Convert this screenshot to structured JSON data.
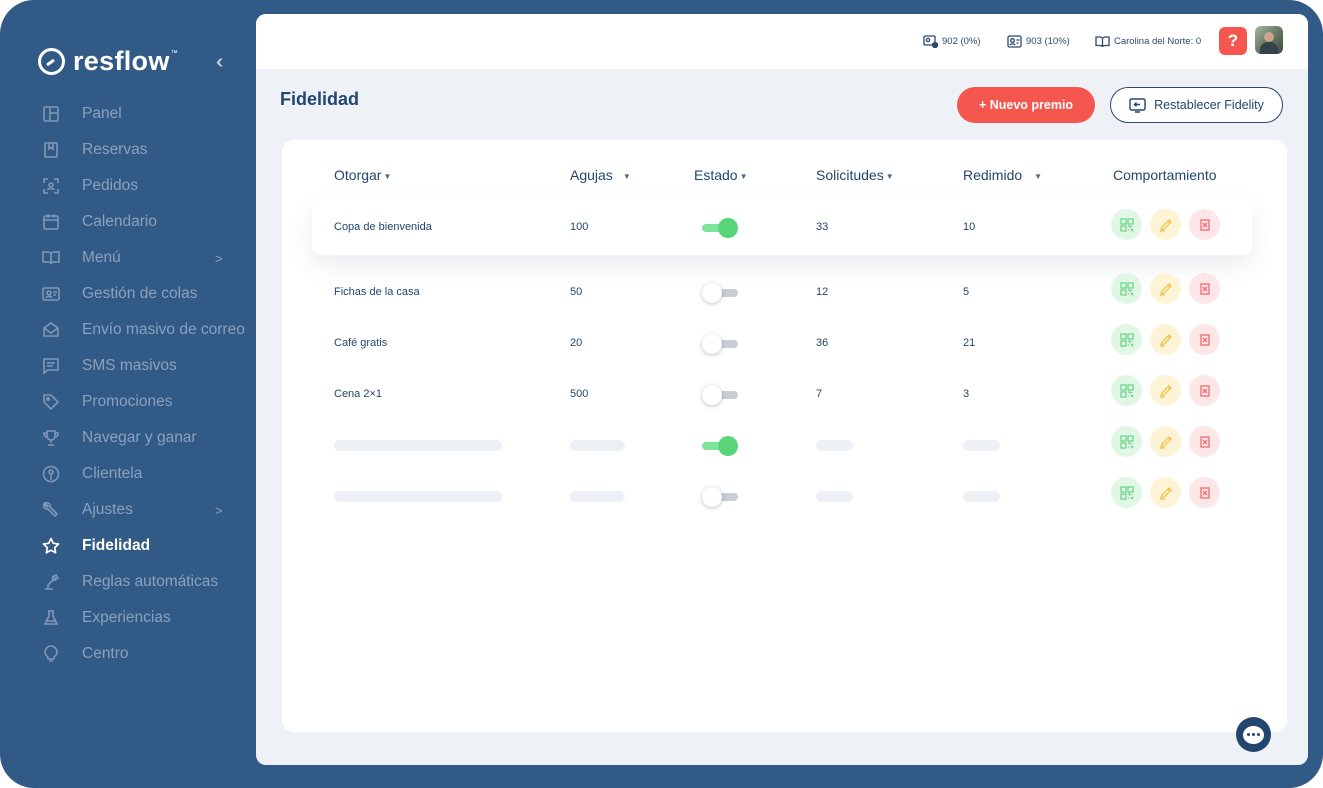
{
  "brand": {
    "name": "resflow",
    "tm": "™"
  },
  "sidebar": {
    "collapse_icon": "double-chevron-left-icon",
    "items": [
      {
        "label": "Panel",
        "icon": "layout-icon",
        "arrow": ""
      },
      {
        "label": "Reservas",
        "icon": "bookmark-icon",
        "arrow": ""
      },
      {
        "label": "Pedidos",
        "icon": "scan-icon",
        "arrow": ""
      },
      {
        "label": "Calendario",
        "icon": "calendar-icon",
        "arrow": ""
      },
      {
        "label": "Menú",
        "icon": "book-open-icon",
        "arrow": ">"
      },
      {
        "label": "Gestión de colas",
        "icon": "id-card-icon",
        "arrow": ""
      },
      {
        "label": "Envío masivo de correo",
        "icon": "mail-icon",
        "arrow": ""
      },
      {
        "label": "SMS masivos",
        "icon": "message-icon",
        "arrow": ""
      },
      {
        "label": "Promociones",
        "icon": "tag-icon",
        "arrow": ""
      },
      {
        "label": "Navegar y ganar",
        "icon": "trophy-icon",
        "arrow": ""
      },
      {
        "label": "Clientela",
        "icon": "user-circle-icon",
        "arrow": ""
      },
      {
        "label": "Ajustes",
        "icon": "wrench-icon",
        "arrow": ">"
      },
      {
        "label": "Fidelidad",
        "icon": "star-icon",
        "arrow": "",
        "active": true
      },
      {
        "label": "Reglas automáticas",
        "icon": "robot-arm-icon",
        "arrow": ""
      },
      {
        "label": "Experiencias",
        "icon": "flask-icon",
        "arrow": ""
      },
      {
        "label": "Centro",
        "icon": "lightbulb-icon",
        "arrow": ""
      }
    ]
  },
  "topbar": {
    "stat1": "902 (0%)",
    "stat2": "903 (10%)",
    "stat3": "Carolina del Norte: 0",
    "help": "?"
  },
  "page": {
    "title": "Fidelidad",
    "new_button": "+ Nuevo premio",
    "reset_button": "Restablecer Fidelity"
  },
  "table": {
    "columns": [
      "Otorgar",
      "Agujas",
      "Estado",
      "Solicitudes",
      "Redimido",
      "Comportamiento"
    ],
    "rows": [
      {
        "name": "Copa de bienvenida",
        "points": "100",
        "enabled": true,
        "requests": "33",
        "redeemed": "10"
      },
      {
        "name": "Fichas de la casa",
        "points": "50",
        "enabled": false,
        "requests": "12",
        "redeemed": "5"
      },
      {
        "name": "Café gratis",
        "points": "20",
        "enabled": false,
        "requests": "36",
        "redeemed": "21"
      },
      {
        "name": "Cena 2×1",
        "points": "500",
        "enabled": false,
        "requests": "7",
        "redeemed": "3"
      }
    ],
    "placeholder_rows": [
      {
        "enabled": true
      },
      {
        "enabled": false
      }
    ]
  },
  "colors": {
    "sidebar": "#325a86",
    "accent": "#f5574f",
    "navy": "#23466e",
    "toggle_on": "#5ad67a"
  }
}
